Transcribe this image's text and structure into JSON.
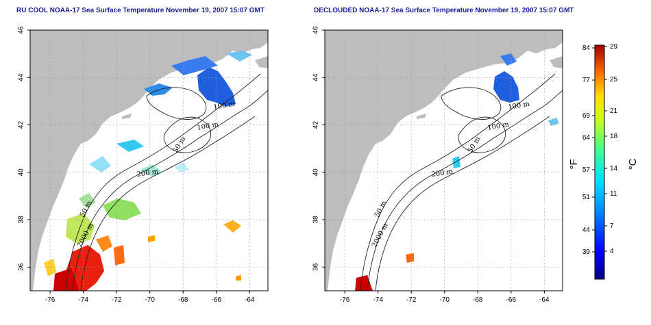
{
  "panels": [
    {
      "title": "RU COOL NOAA-17 Sea Surface Temperature November 19, 2007 15:07 GMT",
      "contour_labels": [
        "100 m",
        "100 m",
        "50 m",
        "200 m",
        "50 m",
        "2000 m"
      ]
    },
    {
      "title": "DECLOUDED NOAA-17 Sea Surface Temperature November 19, 2007 15:07 GMT",
      "contour_labels": [
        "100 m",
        "100 m",
        "50 m",
        "200 m",
        "50 m",
        "2000 m"
      ]
    }
  ],
  "axes": {
    "x_ticks": [
      "-76",
      "-74",
      "-72",
      "-70",
      "-68",
      "-66",
      "-64"
    ],
    "y_ticks": [
      "46",
      "44",
      "42",
      "40",
      "38",
      "36"
    ]
  },
  "colorbar": {
    "fahrenheit_label": "°F",
    "celsius_label": "°C",
    "fahrenheit_ticks": [
      "84",
      "77",
      "69",
      "64",
      "57",
      "51",
      "44",
      "39"
    ],
    "celsius_ticks": [
      "29",
      "25",
      "21",
      "18",
      "14",
      "11",
      "7",
      "4"
    ]
  },
  "colors": {
    "land": "#bdbdbd",
    "title": "#1a1a9c",
    "grid": "#9a9a9a",
    "cold": "#1f5fe0",
    "cool": "#35c8ee",
    "mild": "#8fe060",
    "warm": "#ffb020",
    "hot": "#cc0000"
  }
}
